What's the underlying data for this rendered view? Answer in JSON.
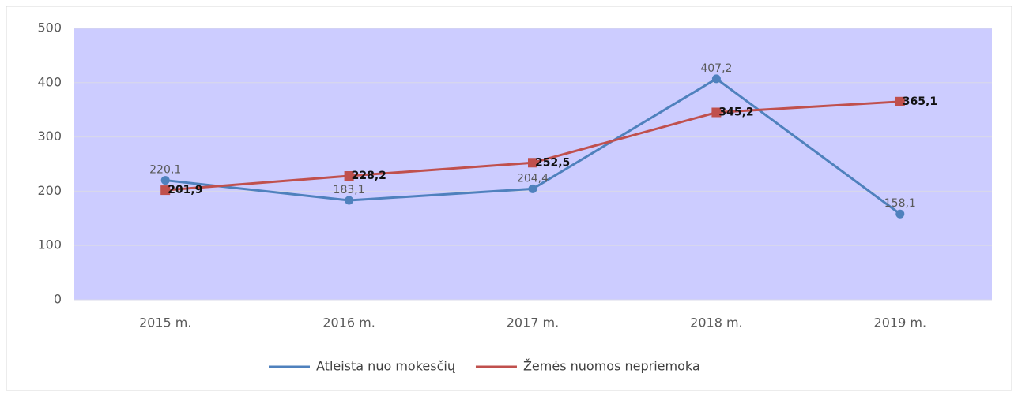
{
  "chart_data": {
    "type": "line",
    "categories": [
      "2015 m.",
      "2016 m.",
      "2017 m.",
      "2018 m.",
      "2019 m."
    ],
    "series": [
      {
        "name": "Atleista nuo mokesčių",
        "color": "#4f81bd",
        "marker": "circle",
        "values": [
          220.1,
          183.1,
          204.4,
          407.2,
          158.1
        ],
        "value_labels": [
          "220,1",
          "183,1",
          "204,4",
          "407,2",
          "158,1"
        ]
      },
      {
        "name": "Žemės nuomos nepriemoka",
        "color": "#c0504d",
        "marker": "square",
        "values": [
          201.9,
          228.2,
          252.5,
          345.2,
          365.1
        ],
        "value_labels": [
          "201,9",
          "228,2",
          "252,5",
          "345,2",
          "365,1"
        ]
      }
    ],
    "ylim": [
      0,
      500
    ],
    "yticks": [
      0,
      100,
      200,
      300,
      400,
      500
    ],
    "plot_background": "#ccccff",
    "legend": "bottom"
  }
}
